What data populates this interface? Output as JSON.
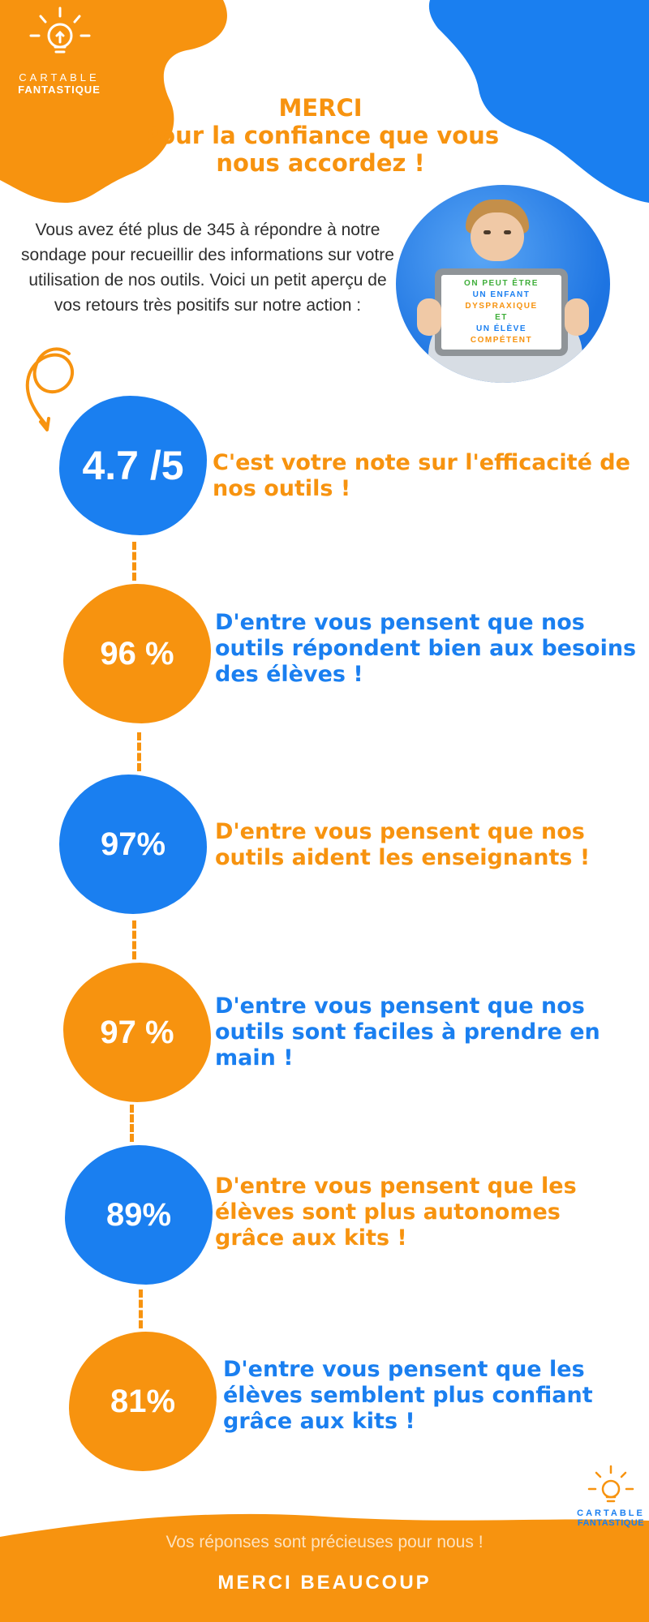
{
  "brand": {
    "logo_line1": "CARTABLE",
    "logo_line2": "FANTASTIQUE",
    "orange": "#f7930f",
    "blue": "#1a7ff0"
  },
  "header": {
    "title_line1": "MERCI",
    "title_line2": "Pour la confiance que vous",
    "title_line3": "nous accordez !"
  },
  "intro": {
    "text": "Vous avez été plus de 345 à répondre à notre sondage pour recueillir des informations sur votre utilisation de nos outils. Voici un petit aperçu de vos retours très positifs sur notre action :"
  },
  "photo": {
    "screen_lines": [
      {
        "text": "ON PEUT ÊTRE",
        "color": "#3fae3a"
      },
      {
        "text": "UN ENFANT",
        "color": "#1a7ff0"
      },
      {
        "text": "DYSPRAXIQUE",
        "color": "#f7930f"
      },
      {
        "text": "ET",
        "color": "#3fae3a"
      },
      {
        "text": "UN ÉLÈVE",
        "color": "#1a7ff0"
      },
      {
        "text": "COMPÉTENT",
        "color": "#f7930f"
      }
    ]
  },
  "stats": [
    {
      "value": "4.7 /5",
      "text": "C'est votre note sur l'efficacité de nos outils !"
    },
    {
      "value": "96 %",
      "text": "D'entre vous pensent que nos outils répondent bien aux besoins des élèves !"
    },
    {
      "value": "97%",
      "text": "D'entre vous pensent que nos outils aident les enseignants !"
    },
    {
      "value": "97 %",
      "text": "D'entre vous pensent que nos outils sont faciles à prendre en main !"
    },
    {
      "value": "89%",
      "text": "D'entre vous pensent que les élèves sont plus autonomes grâce aux kits !"
    },
    {
      "value": "81%",
      "text": "D'entre vous pensent que les élèves semblent plus confiant grâce aux kits !"
    }
  ],
  "footer": {
    "message": "Vos réponses sont précieuses pour nous !",
    "title": "MERCI BEAUCOUP"
  }
}
